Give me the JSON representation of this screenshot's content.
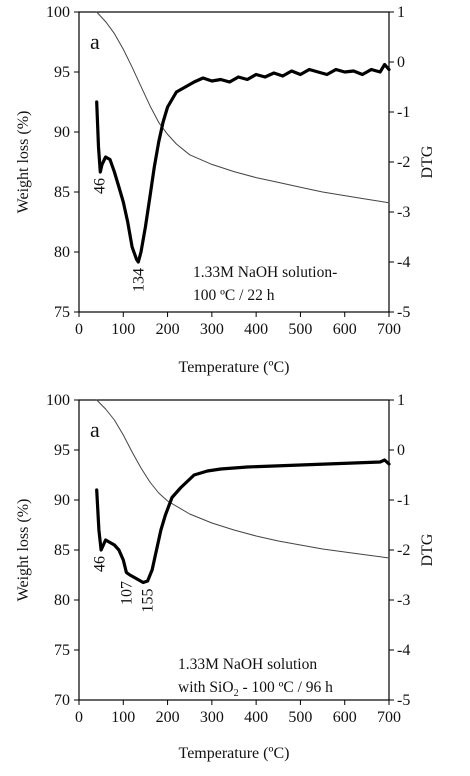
{
  "chart_data": [
    {
      "type": "line",
      "panel_label": "a",
      "annotation_lines": [
        "1.33M NaOH solution-",
        "100 ºC / 22 h"
      ],
      "xlabel": "Temperature (ºC)",
      "ylabel": "Weight loss (%)",
      "y2label": "DTG",
      "xlim": [
        0,
        700
      ],
      "ylim": [
        75,
        100
      ],
      "y2lim": [
        -5,
        1
      ],
      "xticks": [
        "0",
        "100",
        "200",
        "300",
        "400",
        "500",
        "600",
        "700"
      ],
      "yticks": [
        "75",
        "80",
        "85",
        "90",
        "95",
        "100"
      ],
      "y2ticks": [
        "-5",
        "-4",
        "-3",
        "-2",
        "-1",
        "0",
        "1"
      ],
      "peak_labels": [
        {
          "text": "46",
          "x": 46,
          "y2": -2.2
        },
        {
          "text": "134",
          "x": 134,
          "y2": -4.0
        }
      ],
      "series": [
        {
          "axis": "left",
          "x": [
            40,
            60,
            80,
            100,
            120,
            140,
            160,
            180,
            200,
            220,
            250,
            300,
            350,
            400,
            450,
            500,
            550,
            600,
            650,
            700
          ],
          "y": [
            100.0,
            99.2,
            98.2,
            96.9,
            95.4,
            93.8,
            92.2,
            90.8,
            89.8,
            89.0,
            88.1,
            87.3,
            86.7,
            86.2,
            85.8,
            85.4,
            85.0,
            84.7,
            84.4,
            84.1
          ]
        },
        {
          "axis": "right",
          "x": [
            40,
            44,
            48,
            52,
            60,
            70,
            80,
            90,
            100,
            110,
            120,
            130,
            134,
            140,
            150,
            160,
            170,
            180,
            190,
            200,
            210,
            220,
            240,
            260,
            280,
            300,
            320,
            340,
            360,
            380,
            400,
            420,
            440,
            460,
            480,
            500,
            520,
            540,
            560,
            580,
            600,
            620,
            640,
            660,
            680,
            690,
            700
          ],
          "y": [
            -0.8,
            -1.7,
            -2.2,
            -2.05,
            -1.9,
            -1.95,
            -2.2,
            -2.5,
            -2.8,
            -3.2,
            -3.7,
            -3.95,
            -4.0,
            -3.8,
            -3.3,
            -2.7,
            -2.1,
            -1.6,
            -1.2,
            -0.9,
            -0.75,
            -0.6,
            -0.5,
            -0.4,
            -0.32,
            -0.38,
            -0.35,
            -0.4,
            -0.3,
            -0.35,
            -0.25,
            -0.3,
            -0.22,
            -0.28,
            -0.18,
            -0.25,
            -0.15,
            -0.2,
            -0.25,
            -0.15,
            -0.2,
            -0.18,
            -0.25,
            -0.15,
            -0.2,
            -0.05,
            -0.15
          ]
        }
      ]
    },
    {
      "type": "line",
      "panel_label": "a",
      "annotation_lines": [
        "1.33M NaOH solution",
        "with SiO2 - 100 ºC / 96 h"
      ],
      "xlabel": "Temperature (ºC)",
      "ylabel": "Weight loss (%)",
      "y2label": "DTG",
      "xlim": [
        0,
        700
      ],
      "ylim": [
        70,
        100
      ],
      "y2lim": [
        -5,
        1
      ],
      "xticks": [
        "0",
        "100",
        "200",
        "300",
        "400",
        "500",
        "600",
        "700"
      ],
      "yticks": [
        "70",
        "75",
        "80",
        "85",
        "90",
        "95",
        "100"
      ],
      "y2ticks": [
        "-5",
        "-4",
        "-3",
        "-2",
        "-1",
        "0",
        "1"
      ],
      "peak_labels": [
        {
          "text": "46",
          "x": 46,
          "y2": -2.0
        },
        {
          "text": "107",
          "x": 107,
          "y2": -2.5
        },
        {
          "text": "155",
          "x": 155,
          "y2": -2.65
        }
      ],
      "series": [
        {
          "axis": "left",
          "x": [
            40,
            60,
            80,
            100,
            120,
            140,
            160,
            180,
            200,
            250,
            300,
            350,
            400,
            450,
            500,
            550,
            600,
            650,
            700
          ],
          "y": [
            100.0,
            99.1,
            98.0,
            96.5,
            94.8,
            93.2,
            91.8,
            90.7,
            89.9,
            88.6,
            87.7,
            87.0,
            86.4,
            85.9,
            85.5,
            85.1,
            84.8,
            84.5,
            84.2
          ]
        },
        {
          "axis": "right",
          "x": [
            40,
            45,
            50,
            60,
            70,
            80,
            90,
            100,
            107,
            115,
            125,
            135,
            145,
            155,
            165,
            175,
            185,
            195,
            210,
            230,
            260,
            290,
            320,
            350,
            380,
            410,
            440,
            470,
            500,
            530,
            560,
            590,
            620,
            650,
            680,
            690,
            700
          ],
          "y": [
            -0.8,
            -1.6,
            -2.0,
            -1.8,
            -1.85,
            -1.9,
            -2.0,
            -2.2,
            -2.45,
            -2.5,
            -2.55,
            -2.6,
            -2.65,
            -2.62,
            -2.4,
            -2.0,
            -1.6,
            -1.3,
            -0.95,
            -0.75,
            -0.5,
            -0.42,
            -0.38,
            -0.36,
            -0.34,
            -0.33,
            -0.32,
            -0.31,
            -0.3,
            -0.29,
            -0.28,
            -0.27,
            -0.26,
            -0.25,
            -0.24,
            -0.2,
            -0.28
          ]
        }
      ]
    }
  ]
}
